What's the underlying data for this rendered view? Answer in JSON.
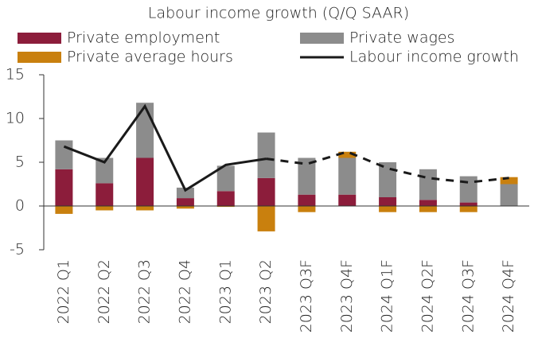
{
  "chart_data": {
    "type": "stacked_bar_line",
    "title": "Labour income growth (Q/Q SAAR)",
    "categories": [
      "2022 Q1",
      "2022 Q2",
      "2022 Q3",
      "2022 Q4",
      "2023 Q1",
      "2023 Q2",
      "2023 Q3F",
      "2023 Q4F",
      "2024 Q1F",
      "2024 Q2F",
      "2024 Q3F",
      "2024 Q4F"
    ],
    "series": [
      {
        "name": "Private employment",
        "color": "#8c1d3b",
        "kind": "bar",
        "values": [
          4.2,
          2.6,
          5.5,
          0.9,
          1.7,
          3.2,
          1.3,
          1.3,
          1.0,
          0.7,
          0.4,
          0
        ]
      },
      {
        "name": "Private wages",
        "color": "#8c8c8c",
        "kind": "bar",
        "values": [
          3.3,
          2.9,
          6.3,
          1.2,
          2.9,
          5.2,
          4.2,
          4.2,
          4.0,
          3.5,
          3.0,
          2.5
        ]
      },
      {
        "name": "Private average hours",
        "color": "#c9800e",
        "kind": "bar",
        "values": [
          -0.9,
          -0.5,
          -0.5,
          -0.3,
          -0.1,
          -2.9,
          -0.7,
          0.7,
          -0.7,
          -0.7,
          -0.7,
          0.8
        ]
      },
      {
        "name": "Labour income growth",
        "color": "#1a1a1a",
        "kind": "line",
        "values": [
          6.8,
          5.0,
          11.4,
          1.8,
          4.7,
          5.4,
          4.8,
          6.2,
          4.3,
          3.2,
          2.7,
          3.2
        ]
      }
    ],
    "ylim": [
      -5,
      15
    ],
    "yticks": [
      -5,
      0,
      5,
      10,
      15
    ],
    "grid": false
  }
}
